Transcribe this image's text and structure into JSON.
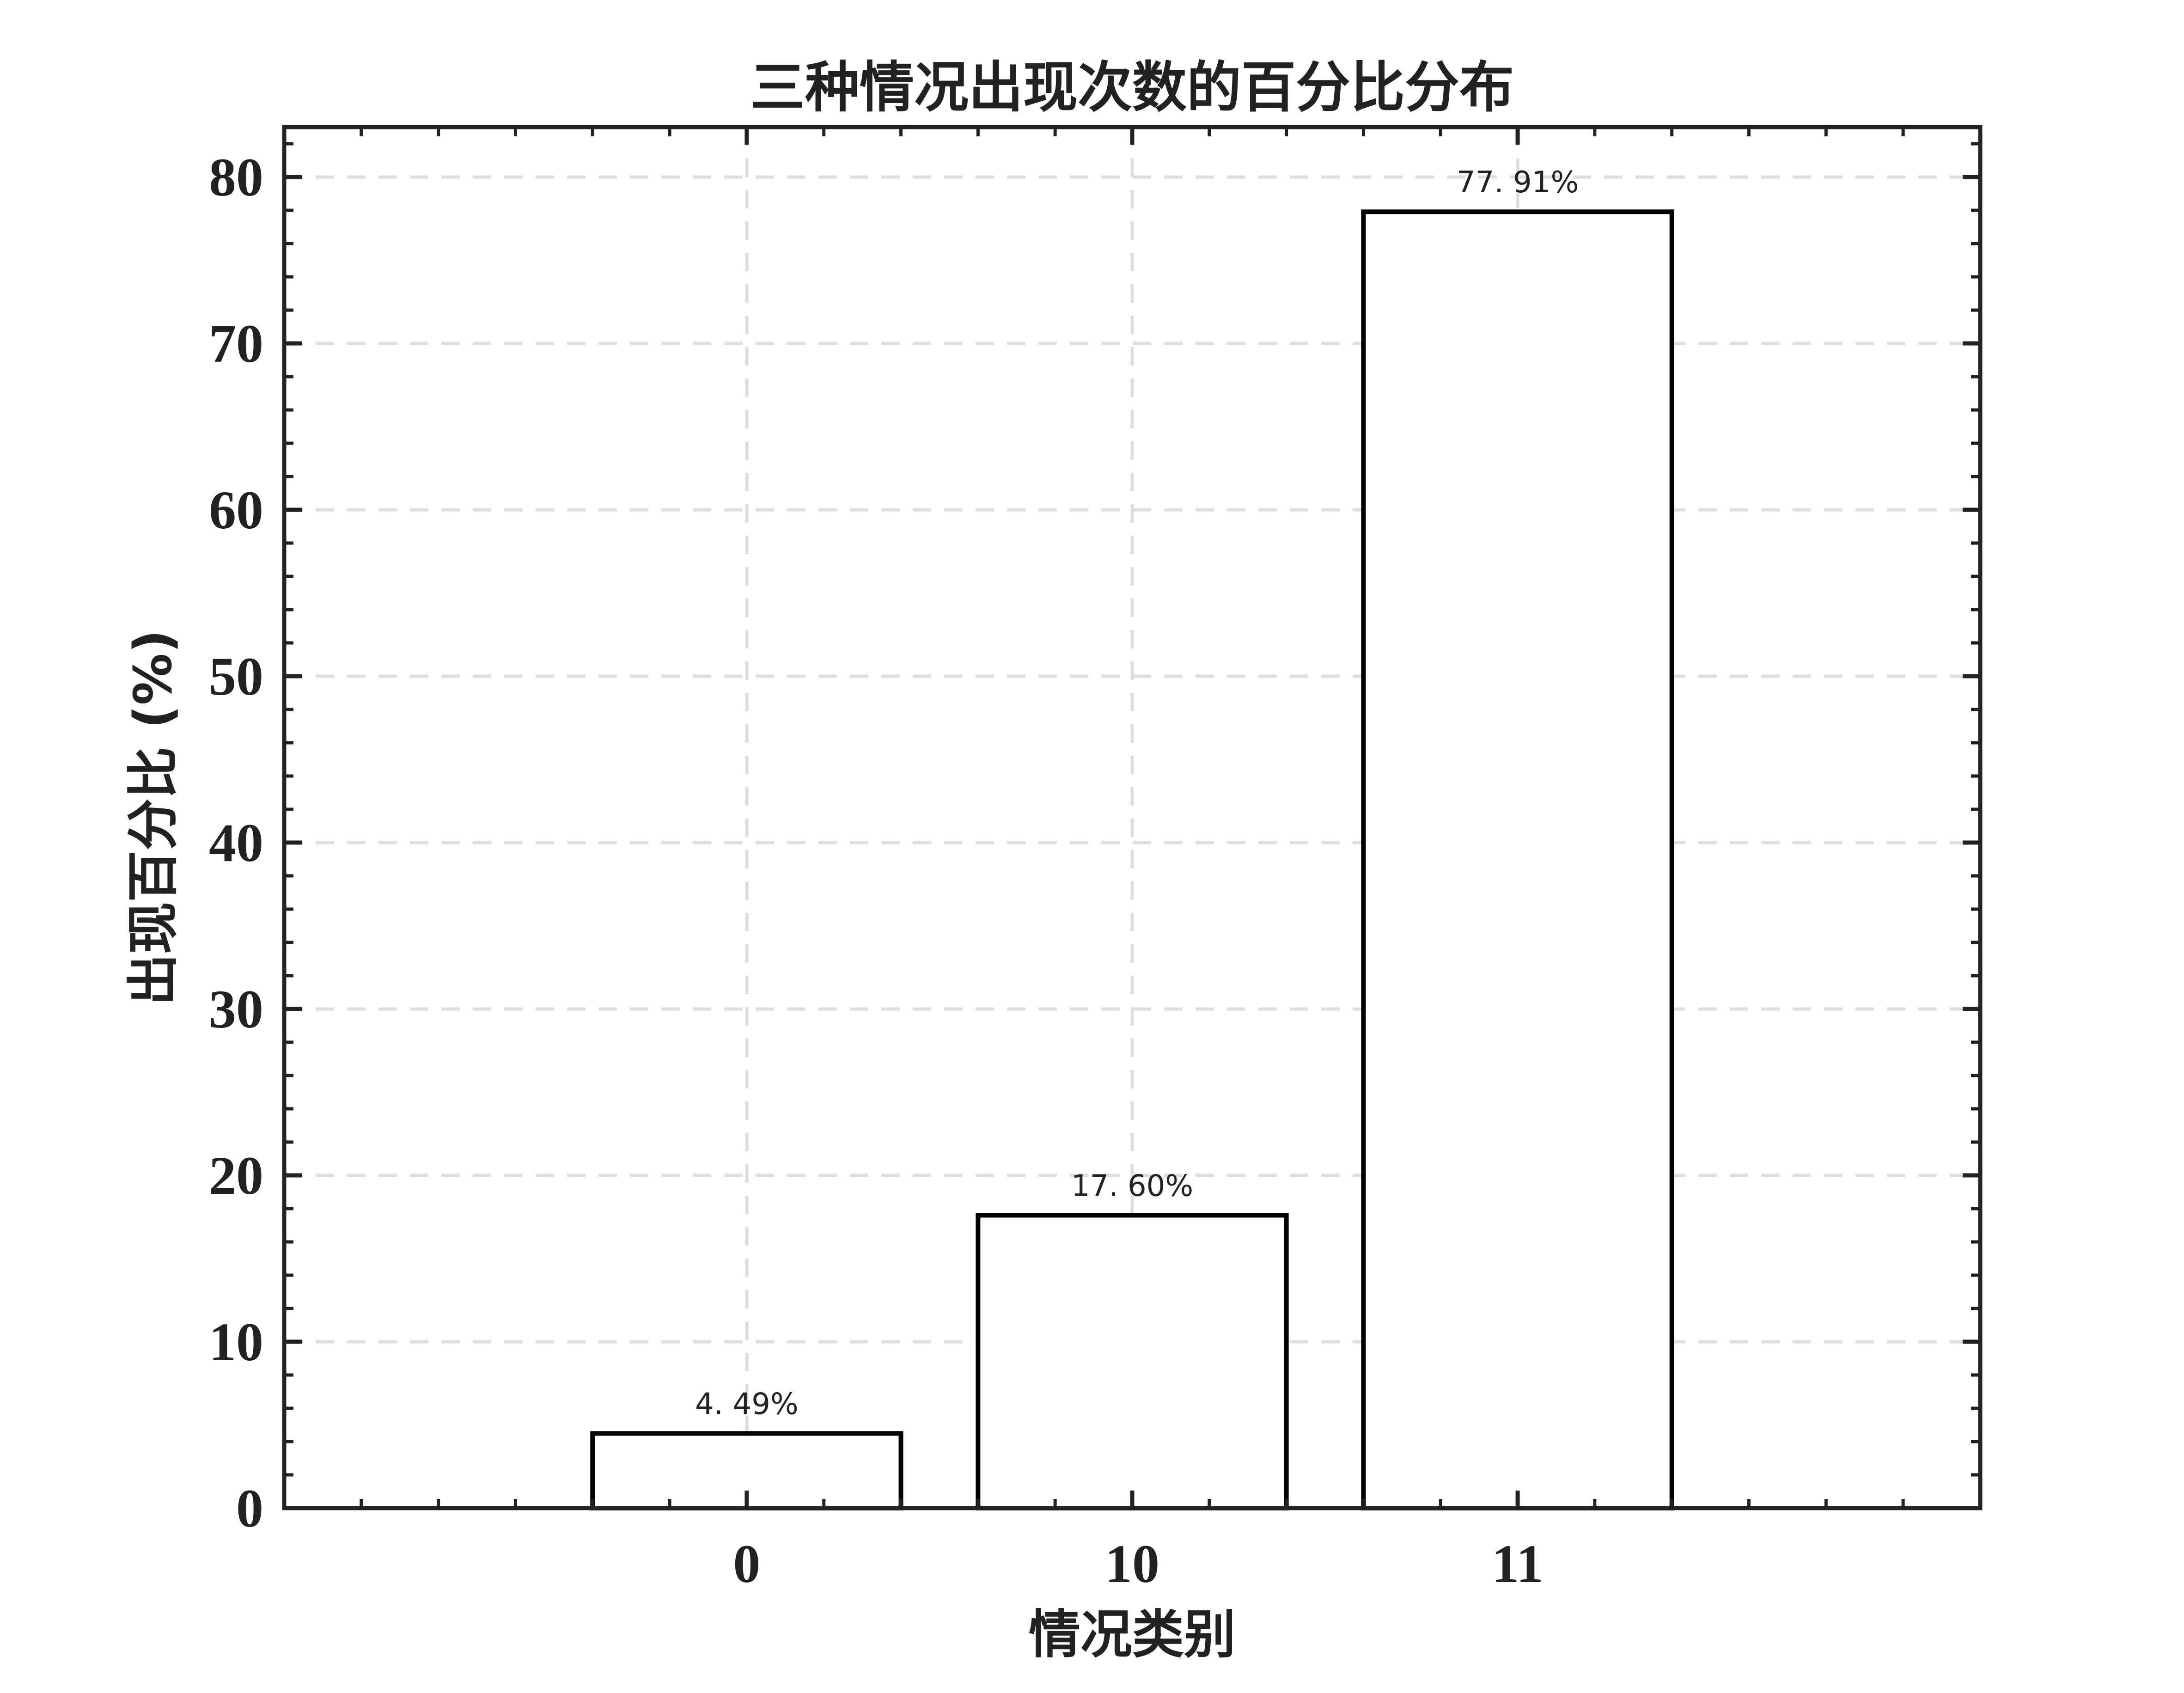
{
  "chart_data": {
    "type": "bar",
    "title": "三种情况出现次数的百分比分布",
    "xlabel": "情况类别",
    "ylabel": "出现百分比 (%)",
    "categories": [
      "0",
      "10",
      "11"
    ],
    "values": [
      4.49,
      17.6,
      77.91
    ],
    "data_labels": [
      "4. 49%",
      "17. 60%",
      "77. 91%"
    ],
    "ylim": [
      0,
      83
    ],
    "yticks": [
      0,
      10,
      20,
      30,
      40,
      50,
      60,
      70,
      80
    ],
    "xlim": [
      -1.2,
      3.2
    ],
    "grid": true,
    "bar_fill": "#ffffff",
    "bar_edge": "#000000",
    "grid_color": "#dddddd",
    "axis_color": "#222222"
  }
}
